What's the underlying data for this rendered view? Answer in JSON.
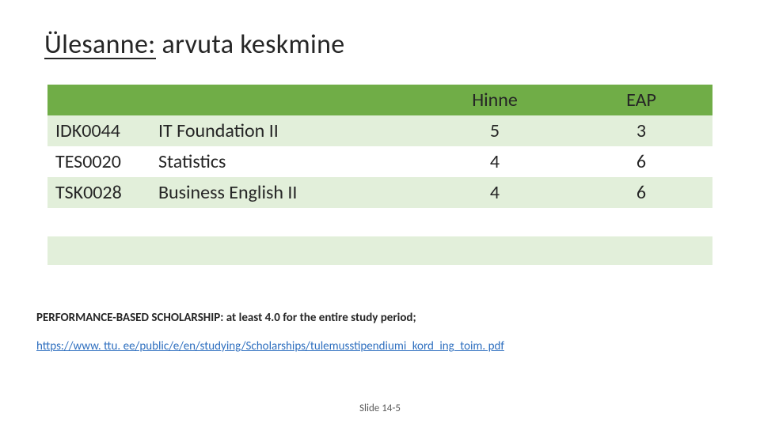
{
  "title": {
    "lead": "Ülesanne:",
    "rest": " arvuta keskmine"
  },
  "table": {
    "header_bg": "#70ad47",
    "header_fg": "#ffffff",
    "stripe_light": "#e2efda",
    "stripe_white": "#ffffff",
    "columns": {
      "code": "",
      "name": "",
      "grade": "Hinne",
      "eap": "EAP"
    },
    "rows": [
      {
        "code": "IDK0044",
        "name": "IT Foundation II",
        "grade": 5,
        "eap": 3
      },
      {
        "code": "TES0020",
        "name": "Statistics",
        "grade": 4,
        "eap": 6
      },
      {
        "code": "TSK0028",
        "name": "Business English II",
        "grade": 4,
        "eap": 6
      }
    ]
  },
  "note": "PERFORMANCE-BASED SCHOLARSHIP: at least 4.0 for the entire study period;",
  "link": "https://www. ttu. ee/public/e/en/studying/Scholarships/tulemusstipendiumi_kord_ing_toim. pdf",
  "slidenum": "Slide 14-5"
}
